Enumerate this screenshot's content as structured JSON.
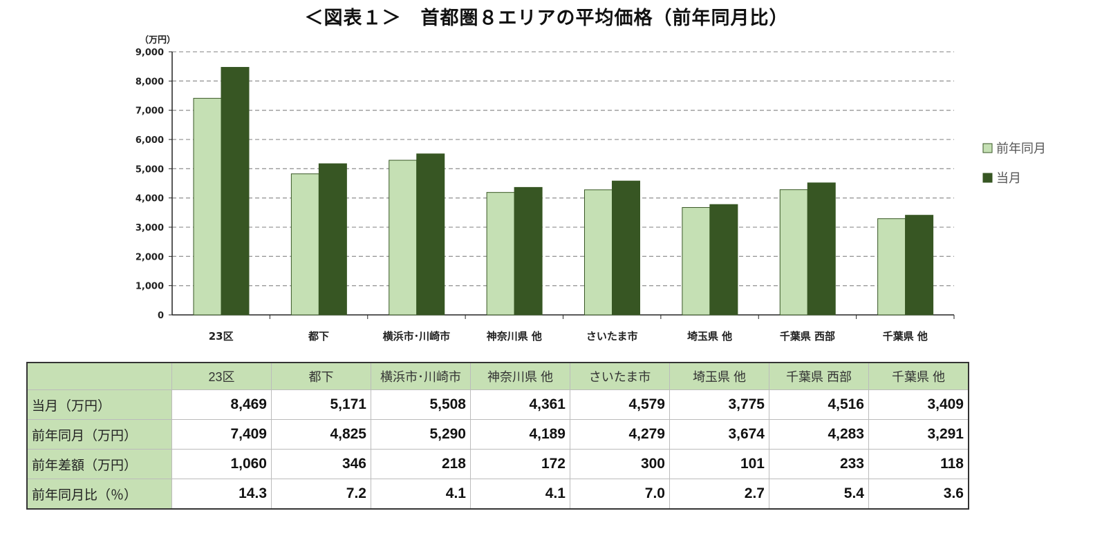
{
  "title": "＜図表１＞　首都圏８エリアの平均価格（前年同月比）",
  "chart_data": {
    "type": "bar",
    "title": "＜図表１＞　首都圏８エリアの平均価格（前年同月比）",
    "ylabel": "（万円）",
    "ylim": [
      0,
      9000
    ],
    "yticks": [
      "0",
      "1,000",
      "2,000",
      "3,000",
      "4,000",
      "5,000",
      "6,000",
      "7,000",
      "8,000",
      "9,000"
    ],
    "grid": true,
    "legend_position": "right",
    "categories": [
      "23区",
      "都下",
      "横浜市･川崎市",
      "神奈川県 他",
      "さいたま市",
      "埼玉県 他",
      "千葉県 西部",
      "千葉県 他"
    ],
    "series": [
      {
        "name": "前年同月",
        "color": "#c5e0b4",
        "values": [
          7409,
          4825,
          5290,
          4189,
          4279,
          3674,
          4283,
          3291
        ]
      },
      {
        "name": "当月",
        "color": "#375623",
        "values": [
          8469,
          5171,
          5508,
          4361,
          4579,
          3775,
          4516,
          3409
        ]
      }
    ]
  },
  "table": {
    "headers": [
      "",
      "23区",
      "都下",
      "横浜市･川崎市",
      "神奈川県 他",
      "さいたま市",
      "埼玉県 他",
      "千葉県 西部",
      "千葉県 他"
    ],
    "rows": [
      {
        "label": "当月（万円）",
        "values": [
          "8,469",
          "5,171",
          "5,508",
          "4,361",
          "4,579",
          "3,775",
          "4,516",
          "3,409"
        ]
      },
      {
        "label": "前年同月（万円）",
        "values": [
          "7,409",
          "4,825",
          "5,290",
          "4,189",
          "4,279",
          "3,674",
          "4,283",
          "3,291"
        ]
      },
      {
        "label": "前年差額（万円）",
        "values": [
          "1,060",
          "346",
          "218",
          "172",
          "300",
          "101",
          "233",
          "118"
        ]
      },
      {
        "label": "前年同月比（％）",
        "values": [
          "14.3",
          "7.2",
          "4.1",
          "4.1",
          "7.0",
          "2.7",
          "5.4",
          "3.6"
        ]
      }
    ]
  }
}
